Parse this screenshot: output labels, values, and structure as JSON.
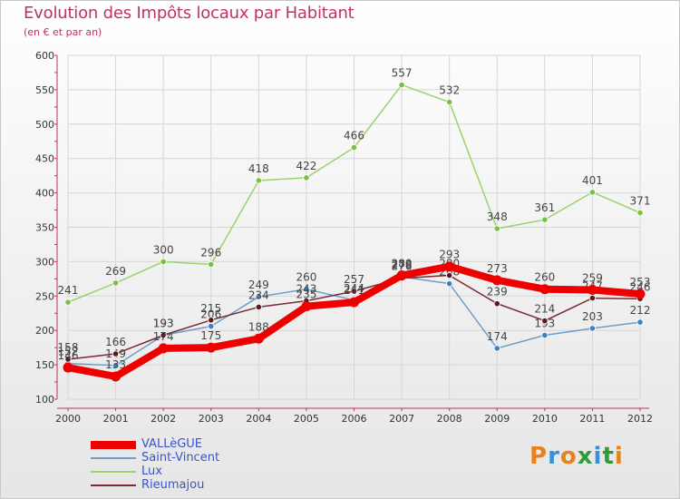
{
  "title": "Evolution des Impôts locaux par Habitant",
  "subtitle": "(en € et par an)",
  "brand": "Proxiti",
  "colors": {
    "title": "#c0306a",
    "axis": "#c0306a",
    "grid": "#d6d6d6",
    "tick_text": "#333333",
    "legend_text": "#3a55c8"
  },
  "chart_data": {
    "type": "line",
    "title": "Evolution des Impôts locaux par Habitant",
    "subtitle": "(en € et par an)",
    "xlabel": "",
    "ylabel": "",
    "x": [
      "2000",
      "2001",
      "2002",
      "2003",
      "2004",
      "2005",
      "2006",
      "2007",
      "2008",
      "2009",
      "2010",
      "2011",
      "2012"
    ],
    "ylim": [
      100,
      600
    ],
    "yticks": [
      100,
      150,
      200,
      250,
      300,
      350,
      400,
      450,
      500,
      550,
      600
    ],
    "grid": true,
    "legend_position": "bottom-left",
    "series": [
      {
        "name": "Lux",
        "color": "#99d36b",
        "marker": "#76c043",
        "values": [
          241,
          269,
          300,
          296,
          418,
          422,
          466,
          557,
          532,
          348,
          361,
          401,
          371
        ]
      },
      {
        "name": "Saint-Vincent",
        "color": "#6e9ec8",
        "marker": "#3f7fc0",
        "values": [
          152,
          149,
          193,
          206,
          249,
          260,
          244,
          278,
          268,
          174,
          193,
          203,
          212
        ]
      },
      {
        "name": "Rieumajou",
        "color": "#7a2a32",
        "marker": "#5a1820",
        "values": [
          158,
          166,
          193,
          215,
          234,
          243,
          257,
          276,
          280,
          239,
          214,
          247,
          246
        ]
      },
      {
        "name": "VALLèGUE",
        "color": "#ee0000",
        "marker": "#ee0000",
        "values": [
          146,
          133,
          174,
          175,
          188,
          235,
          241,
          280,
          293,
          273,
          260,
          259,
          253
        ]
      }
    ]
  },
  "legend": [
    {
      "name": "VALLèGUE",
      "color": "#ee0000"
    },
    {
      "name": "Saint-Vincent",
      "color": "#6e9ec8"
    },
    {
      "name": "Lux",
      "color": "#99d36b"
    },
    {
      "name": "Rieumajou",
      "color": "#7a2a32"
    }
  ]
}
